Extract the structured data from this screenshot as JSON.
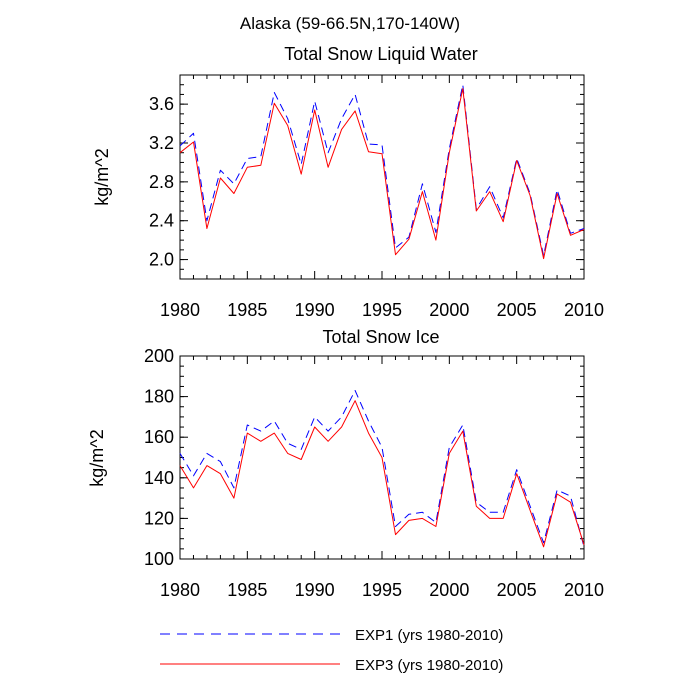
{
  "suptitle": "Alaska (59-66.5N,170-140W)",
  "legend": [
    {
      "label": "EXP1 (yrs 1980-2010)",
      "color": "#0000ff",
      "style": "dashed"
    },
    {
      "label": "EXP3 (yrs 1980-2010)",
      "color": "#ff0000",
      "style": "solid"
    }
  ],
  "chart_data": [
    {
      "type": "line",
      "title": "Total Snow Liquid Water",
      "xlabel": "",
      "ylabel": "kg/m^2",
      "xlim": [
        1980,
        2010
      ],
      "ylim": [
        1.8,
        3.9
      ],
      "xticks": [
        1980,
        1985,
        1990,
        1995,
        2000,
        2005,
        2010
      ],
      "yticks": [
        2.0,
        2.4,
        2.8,
        3.2,
        3.6
      ],
      "ytick_labels": [
        "2.0",
        "2.4",
        "2.8",
        "3.2",
        "3.6"
      ],
      "x": [
        1980,
        1981,
        1982,
        1983,
        1984,
        1985,
        1986,
        1987,
        1988,
        1989,
        1990,
        1991,
        1992,
        1993,
        1994,
        1995,
        1996,
        1997,
        1998,
        1999,
        2000,
        2001,
        2002,
        2003,
        2004,
        2005,
        2006,
        2007,
        2008,
        2009,
        2010
      ],
      "series": [
        {
          "name": "EXP1 (yrs 1980-2010)",
          "color": "#0000ff",
          "style": "dashed",
          "values": [
            3.17,
            3.3,
            2.4,
            2.92,
            2.78,
            3.04,
            3.06,
            3.72,
            3.45,
            2.98,
            3.63,
            3.1,
            3.45,
            3.7,
            3.19,
            3.18,
            2.12,
            2.23,
            2.78,
            2.28,
            3.14,
            3.8,
            2.52,
            2.75,
            2.43,
            3.04,
            2.68,
            2.04,
            2.72,
            2.27,
            2.32
          ]
        },
        {
          "name": "EXP3 (yrs 1980-2010)",
          "color": "#ff0000",
          "style": "solid",
          "values": [
            3.1,
            3.21,
            2.32,
            2.84,
            2.68,
            2.95,
            2.97,
            3.61,
            3.38,
            2.88,
            3.54,
            2.95,
            3.34,
            3.53,
            3.11,
            3.09,
            2.05,
            2.21,
            2.7,
            2.2,
            3.1,
            3.76,
            2.5,
            2.7,
            2.39,
            3.02,
            2.66,
            2.01,
            2.68,
            2.25,
            2.31
          ]
        }
      ]
    },
    {
      "type": "line",
      "title": "Total Snow Ice",
      "xlabel": "",
      "ylabel": "kg/m^2",
      "xlim": [
        1980,
        2010
      ],
      "ylim": [
        100,
        200
      ],
      "xticks": [
        1980,
        1985,
        1990,
        1995,
        2000,
        2005,
        2010
      ],
      "yticks": [
        100,
        120,
        140,
        160,
        180,
        200
      ],
      "ytick_labels": [
        "100",
        "120",
        "140",
        "160",
        "180",
        "200"
      ],
      "x": [
        1980,
        1981,
        1982,
        1983,
        1984,
        1985,
        1986,
        1987,
        1988,
        1989,
        1990,
        1991,
        1992,
        1993,
        1994,
        1995,
        1996,
        1997,
        1998,
        1999,
        2000,
        2001,
        2002,
        2003,
        2004,
        2005,
        2006,
        2007,
        2008,
        2009,
        2010
      ],
      "series": [
        {
          "name": "EXP1 (yrs 1980-2010)",
          "color": "#0000ff",
          "style": "dashed",
          "values": [
            152,
            141,
            152,
            148,
            135,
            166,
            163,
            168,
            157,
            154,
            170,
            163,
            170,
            183,
            168,
            155,
            116,
            122,
            123,
            118,
            155,
            166,
            128,
            123,
            123,
            144,
            126,
            108,
            134,
            131,
            106
          ]
        },
        {
          "name": "EXP3 (yrs 1980-2010)",
          "color": "#ff0000",
          "style": "solid",
          "values": [
            146,
            135,
            146,
            142,
            130,
            162,
            158,
            162,
            152,
            149,
            165,
            158,
            165,
            178,
            162,
            150,
            112,
            119,
            120,
            116,
            152,
            163,
            126,
            120,
            120,
            142,
            124,
            106,
            132,
            128,
            107
          ]
        }
      ]
    }
  ]
}
